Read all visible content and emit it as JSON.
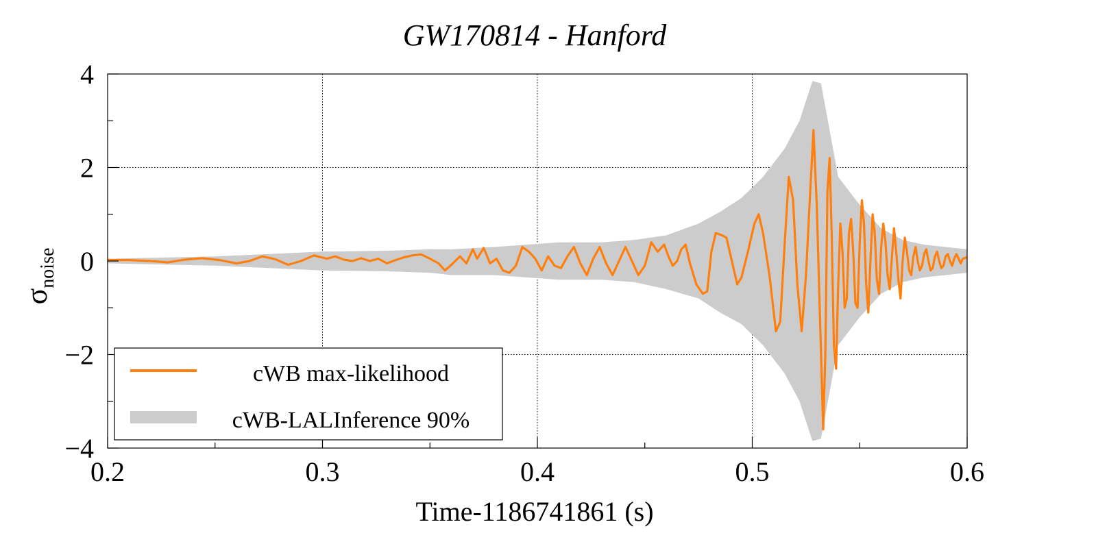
{
  "chart_data": {
    "type": "line",
    "title": "GW170814 - Hanford",
    "xlabel": "Time-1186741861 (s)",
    "ylabel_main": "σ",
    "ylabel_sub": "noise",
    "xlim": [
      0.2,
      0.6
    ],
    "ylim": [
      -4,
      4
    ],
    "x_ticks": [
      0.2,
      0.3,
      0.4,
      0.5,
      0.6
    ],
    "x_tick_labels": [
      "0.2",
      "0.3",
      "0.4",
      "0.5",
      "0.6"
    ],
    "y_ticks": [
      -4,
      -2,
      0,
      2,
      4
    ],
    "y_tick_labels": [
      "−4",
      "−2",
      "0",
      "2",
      "4"
    ],
    "grid": true,
    "legend_placement": "bottom-left",
    "colors": {
      "max_likelihood": "#ff7f0e",
      "band": "#cccccc"
    },
    "series": [
      {
        "name": "cWB max-likelihood",
        "kind": "line",
        "points": [
          [
            0.2,
            0.02
          ],
          [
            0.21,
            0.02
          ],
          [
            0.22,
            0.0
          ],
          [
            0.228,
            -0.03
          ],
          [
            0.236,
            0.03
          ],
          [
            0.244,
            0.06
          ],
          [
            0.252,
            0.02
          ],
          [
            0.26,
            -0.05
          ],
          [
            0.266,
            0.0
          ],
          [
            0.272,
            0.1
          ],
          [
            0.278,
            0.04
          ],
          [
            0.284,
            -0.08
          ],
          [
            0.29,
            0.0
          ],
          [
            0.296,
            0.12
          ],
          [
            0.302,
            0.05
          ],
          [
            0.306,
            0.1
          ],
          [
            0.31,
            0.03
          ],
          [
            0.314,
            0.0
          ],
          [
            0.318,
            0.06
          ],
          [
            0.322,
            0.0
          ],
          [
            0.326,
            0.05
          ],
          [
            0.33,
            -0.05
          ],
          [
            0.334,
            0.02
          ],
          [
            0.338,
            0.08
          ],
          [
            0.342,
            0.12
          ],
          [
            0.346,
            0.14
          ],
          [
            0.35,
            0.05
          ],
          [
            0.354,
            -0.05
          ],
          [
            0.357,
            -0.2
          ],
          [
            0.36,
            -0.08
          ],
          [
            0.364,
            0.1
          ],
          [
            0.367,
            -0.05
          ],
          [
            0.37,
            0.25
          ],
          [
            0.372,
            0.05
          ],
          [
            0.375,
            0.28
          ],
          [
            0.378,
            -0.05
          ],
          [
            0.381,
            0.05
          ],
          [
            0.384,
            -0.2
          ],
          [
            0.387,
            -0.25
          ],
          [
            0.39,
            -0.1
          ],
          [
            0.393,
            0.3
          ],
          [
            0.396,
            0.2
          ],
          [
            0.399,
            0.05
          ],
          [
            0.402,
            -0.2
          ],
          [
            0.405,
            0.1
          ],
          [
            0.408,
            -0.1
          ],
          [
            0.411,
            -0.15
          ],
          [
            0.414,
            0.1
          ],
          [
            0.417,
            0.3
          ],
          [
            0.42,
            -0.05
          ],
          [
            0.423,
            -0.3
          ],
          [
            0.426,
            0.05
          ],
          [
            0.429,
            0.3
          ],
          [
            0.432,
            -0.05
          ],
          [
            0.435,
            -0.3
          ],
          [
            0.438,
            0.0
          ],
          [
            0.441,
            0.3
          ],
          [
            0.444,
            0.0
          ],
          [
            0.447,
            -0.3
          ],
          [
            0.45,
            -0.1
          ],
          [
            0.453,
            0.4
          ],
          [
            0.456,
            0.2
          ],
          [
            0.459,
            0.35
          ],
          [
            0.461,
            0.1
          ],
          [
            0.463,
            -0.1
          ],
          [
            0.465,
            0.0
          ],
          [
            0.467,
            0.25
          ],
          [
            0.469,
            0.35
          ],
          [
            0.471,
            -0.05
          ],
          [
            0.474,
            -0.5
          ],
          [
            0.477,
            -0.7
          ],
          [
            0.479,
            -0.65
          ],
          [
            0.481,
            0.2
          ],
          [
            0.483,
            0.6
          ],
          [
            0.486,
            0.55
          ],
          [
            0.488,
            0.5
          ],
          [
            0.491,
            -0.1
          ],
          [
            0.493,
            -0.5
          ],
          [
            0.495,
            -0.35
          ],
          [
            0.498,
            0.2
          ],
          [
            0.501,
            0.8
          ],
          [
            0.503,
            1.0
          ],
          [
            0.505,
            0.6
          ],
          [
            0.508,
            -0.3
          ],
          [
            0.511,
            -1.5
          ],
          [
            0.513,
            -1.3
          ],
          [
            0.515,
            0.3
          ],
          [
            0.517,
            1.8
          ],
          [
            0.519,
            1.3
          ],
          [
            0.521,
            -0.5
          ],
          [
            0.523,
            -1.5
          ],
          [
            0.525,
            -0.3
          ],
          [
            0.527,
            1.5
          ],
          [
            0.5285,
            2.8
          ],
          [
            0.53,
            1.2
          ],
          [
            0.5315,
            -1.2
          ],
          [
            0.533,
            -3.6
          ],
          [
            0.534,
            -2.0
          ],
          [
            0.535,
            1.5
          ],
          [
            0.536,
            2.2
          ],
          [
            0.537,
            0.5
          ],
          [
            0.538,
            -1.8
          ],
          [
            0.539,
            -2.3
          ],
          [
            0.54,
            -0.5
          ],
          [
            0.541,
            0.8
          ],
          [
            0.542,
            0.2
          ],
          [
            0.543,
            -1.0
          ],
          [
            0.544,
            -0.8
          ],
          [
            0.545,
            0.6
          ],
          [
            0.546,
            0.9
          ],
          [
            0.547,
            0.2
          ],
          [
            0.548,
            -0.9
          ],
          [
            0.549,
            -1.0
          ],
          [
            0.55,
            0.4
          ],
          [
            0.551,
            1.3
          ],
          [
            0.552,
            0.8
          ],
          [
            0.553,
            -0.5
          ],
          [
            0.554,
            -1.1
          ],
          [
            0.555,
            0.0
          ],
          [
            0.556,
            1.0
          ],
          [
            0.557,
            0.6
          ],
          [
            0.558,
            -0.4
          ],
          [
            0.559,
            -0.7
          ],
          [
            0.56,
            0.3
          ],
          [
            0.561,
            0.8
          ],
          [
            0.562,
            0.4
          ],
          [
            0.563,
            -0.3
          ],
          [
            0.564,
            -0.6
          ],
          [
            0.565,
            0.1
          ],
          [
            0.566,
            0.7
          ],
          [
            0.567,
            0.2
          ],
          [
            0.568,
            -0.4
          ],
          [
            0.569,
            -0.8
          ],
          [
            0.57,
            0.0
          ],
          [
            0.571,
            0.5
          ],
          [
            0.572,
            0.2
          ],
          [
            0.573,
            -0.2
          ],
          [
            0.574,
            -0.3
          ],
          [
            0.575,
            0.1
          ],
          [
            0.576,
            0.3
          ],
          [
            0.577,
            0.0
          ],
          [
            0.578,
            -0.2
          ],
          [
            0.579,
            -0.1
          ],
          [
            0.58,
            0.15
          ],
          [
            0.581,
            0.25
          ],
          [
            0.582,
            0.0
          ],
          [
            0.583,
            -0.2
          ],
          [
            0.584,
            -0.15
          ],
          [
            0.585,
            0.1
          ],
          [
            0.586,
            0.2
          ],
          [
            0.587,
            0.0
          ],
          [
            0.588,
            -0.15
          ],
          [
            0.589,
            -0.1
          ],
          [
            0.59,
            0.1
          ],
          [
            0.591,
            0.15
          ],
          [
            0.592,
            0.0
          ],
          [
            0.593,
            -0.1
          ],
          [
            0.594,
            0.05
          ],
          [
            0.595,
            0.15
          ],
          [
            0.596,
            0.05
          ],
          [
            0.597,
            -0.05
          ],
          [
            0.598,
            0.05
          ],
          [
            0.6,
            0.08
          ]
        ]
      },
      {
        "name": "cWB-LALInference 90%",
        "kind": "band",
        "x": [
          0.2,
          0.25,
          0.3,
          0.33,
          0.35,
          0.36,
          0.38,
          0.395,
          0.41,
          0.43,
          0.445,
          0.46,
          0.475,
          0.485,
          0.495,
          0.505,
          0.515,
          0.522,
          0.528,
          0.532,
          0.54,
          0.55,
          0.56,
          0.57,
          0.58,
          0.6
        ],
        "upper": [
          0.05,
          0.1,
          0.2,
          0.22,
          0.25,
          0.25,
          0.3,
          0.35,
          0.4,
          0.4,
          0.45,
          0.55,
          0.8,
          1.05,
          1.35,
          1.8,
          2.4,
          3.0,
          3.85,
          3.8,
          1.8,
          1.2,
          0.7,
          0.45,
          0.35,
          0.25
        ],
        "lower": [
          -0.05,
          -0.1,
          -0.2,
          -0.22,
          -0.25,
          -0.3,
          -0.3,
          -0.35,
          -0.4,
          -0.4,
          -0.45,
          -0.6,
          -0.8,
          -1.1,
          -1.35,
          -1.8,
          -2.4,
          -3.0,
          -3.85,
          -3.8,
          -1.8,
          -1.2,
          -0.7,
          -0.45,
          -0.35,
          -0.25
        ]
      }
    ]
  }
}
